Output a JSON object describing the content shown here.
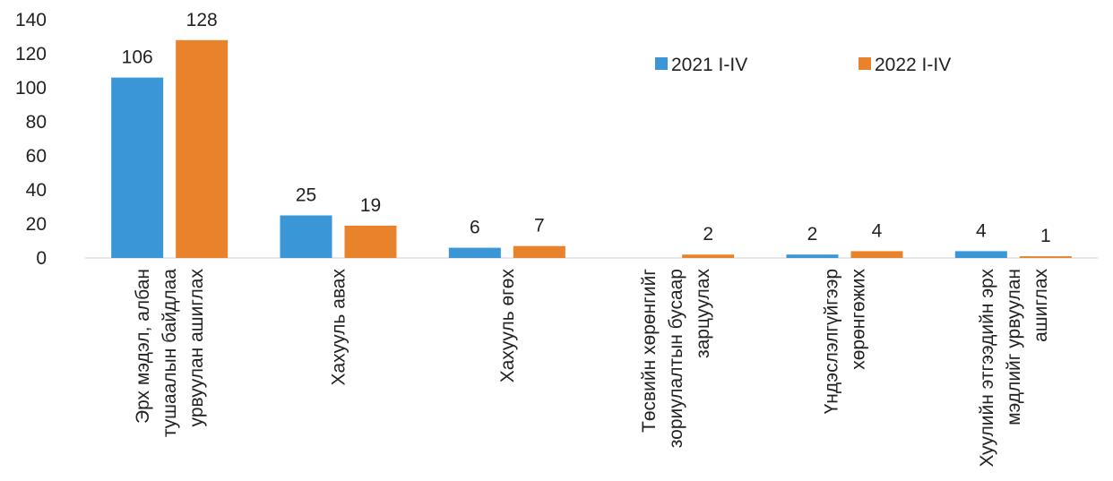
{
  "chart_data": {
    "type": "bar",
    "categories": [
      "Эрх мэдэл, албан тушаалын байдлаа урвуулан ашиглах",
      "Хахууль авах",
      "Хахууль өгөх",
      "Төсвийн хөрөнгийг зориулалтын бусаар зарцуулах",
      "Үндэслэлгүйгээр хөрөнгөжих",
      "Хуулийн этгээдийн эрх мэдлийг урвуулан ашиглах"
    ],
    "series": [
      {
        "name": "2021 I-IV",
        "color": "#3a96d6",
        "values": [
          106,
          25,
          6,
          null,
          2,
          4
        ]
      },
      {
        "name": "2022 I-IV",
        "color": "#e8822b",
        "values": [
          128,
          19,
          7,
          2,
          4,
          1
        ]
      }
    ],
    "ylim": [
      0,
      140
    ],
    "yticks": [
      0,
      20,
      40,
      60,
      80,
      100,
      120,
      140
    ],
    "grid": false,
    "legend": "top-right"
  }
}
